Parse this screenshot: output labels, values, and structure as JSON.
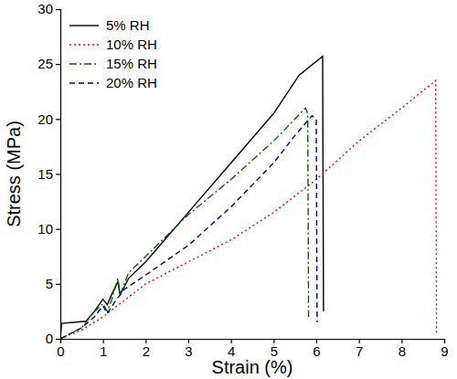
{
  "chart_data": {
    "type": "line",
    "x_label": "Strain (%)",
    "y_label": "Stress (MPa)",
    "xlim": [
      0,
      9
    ],
    "xticks": [
      0,
      1,
      2,
      3,
      4,
      5,
      6,
      7,
      8,
      9
    ],
    "ylim": [
      0,
      30
    ],
    "yticks": [
      0,
      5,
      10,
      15,
      20,
      25,
      30
    ],
    "legend": "upper left",
    "series": [
      {
        "name": "5% RH",
        "color": "#000000",
        "line_style": "solid",
        "x": [
          0,
          0.03,
          0.6,
          0.8,
          1.0,
          1.1,
          1.2,
          1.35,
          1.4,
          1.6,
          2.0,
          3.0,
          4.0,
          5.0,
          5.6,
          6.15,
          6.17
        ],
        "values": [
          0,
          1.4,
          1.6,
          2.5,
          3.6,
          3.1,
          4.0,
          5.2,
          4.0,
          5.5,
          7.0,
          11.5,
          16.0,
          20.5,
          24.0,
          25.7,
          2.5
        ]
      },
      {
        "name": "10% RH",
        "color": "#ff0000",
        "line_style": "dotted",
        "x": [
          0,
          0.5,
          1.0,
          1.5,
          2.0,
          3.0,
          4.0,
          5.0,
          6.0,
          7.0,
          8.0,
          8.8,
          8.82
        ],
        "values": [
          0,
          0.8,
          2.0,
          3.5,
          5.0,
          7.0,
          9.0,
          11.5,
          14.5,
          18.0,
          21.0,
          23.5,
          0.5
        ]
      },
      {
        "name": "15% RH",
        "color": "#006400",
        "line_style": "dashdot",
        "x": [
          0,
          0.5,
          0.8,
          1.0,
          1.1,
          1.2,
          1.35,
          1.4,
          1.6,
          2.0,
          3.0,
          4.0,
          5.0,
          5.5,
          5.75,
          5.8,
          5.82
        ],
        "values": [
          0,
          1.0,
          2.5,
          3.2,
          2.5,
          3.5,
          5.5,
          4.0,
          6.0,
          7.5,
          11.3,
          14.5,
          18.0,
          20.0,
          21.0,
          20.5,
          2.0
        ]
      },
      {
        "name": "20% RH",
        "color": "#00008b",
        "line_style": "dashed",
        "x": [
          0,
          0.5,
          0.8,
          1.0,
          1.1,
          1.3,
          1.5,
          2.0,
          3.0,
          4.0,
          5.0,
          5.5,
          5.9,
          6.0,
          6.02
        ],
        "values": [
          0,
          1.0,
          2.0,
          3.0,
          2.3,
          3.5,
          4.5,
          5.8,
          8.5,
          12.0,
          16.0,
          18.5,
          20.3,
          20.0,
          1.5
        ]
      }
    ]
  }
}
